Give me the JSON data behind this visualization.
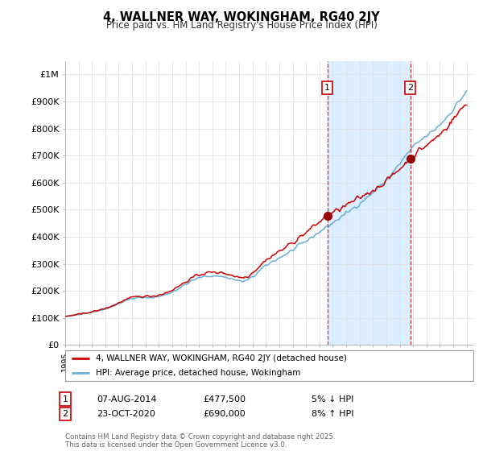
{
  "title": "4, WALLNER WAY, WOKINGHAM, RG40 2JY",
  "subtitle": "Price paid vs. HM Land Registry's House Price Index (HPI)",
  "ylim": [
    0,
    1050000
  ],
  "yticks": [
    0,
    100000,
    200000,
    300000,
    400000,
    500000,
    600000,
    700000,
    800000,
    900000,
    1000000
  ],
  "ytick_labels": [
    "£0",
    "£100K",
    "£200K",
    "£300K",
    "£400K",
    "£500K",
    "£600K",
    "£700K",
    "£800K",
    "£900K",
    "£1M"
  ],
  "hpi_color": "#6baed6",
  "price_color": "#cc0000",
  "sale1_year": 2014.583,
  "sale1_price": 477500,
  "sale1_date": "07-AUG-2014",
  "sale1_price_str": "£477,500",
  "sale1_note": "5% ↓ HPI",
  "sale2_year": 2020.792,
  "sale2_price": 690000,
  "sale2_date": "23-OCT-2020",
  "sale2_price_str": "£690,000",
  "sale2_note": "8% ↑ HPI",
  "legend_label1": "4, WALLNER WAY, WOKINGHAM, RG40 2JY (detached house)",
  "legend_label2": "HPI: Average price, detached house, Wokingham",
  "footer": "Contains HM Land Registry data © Crown copyright and database right 2025.\nThis data is licensed under the Open Government Licence v3.0.",
  "background_color": "#ffffff",
  "grid_color": "#dddddd",
  "shade_color": "#dceeff"
}
